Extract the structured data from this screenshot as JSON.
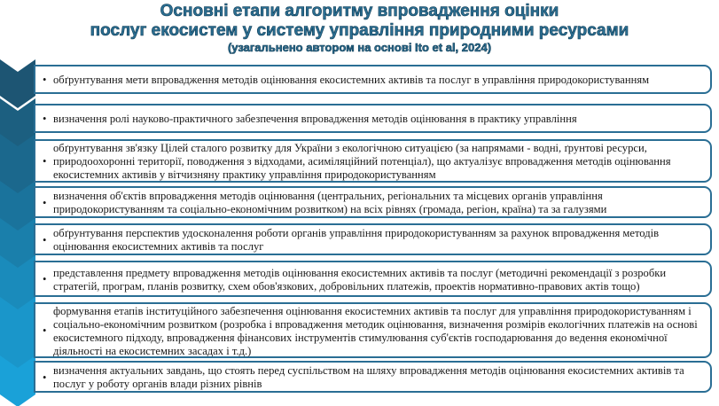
{
  "title": {
    "line1": "Основні етапи алгоритму впровадження оцінки",
    "line2": "послуг екосистем у систему управління природними ресурсами",
    "subtitle": "(узагальнено автором на основі Ito et al, 2024)"
  },
  "colors": {
    "chevrons": [
      "#1d5573",
      "#1c5f80",
      "#1b688d",
      "#1a739c",
      "#1a7fab",
      "#1a8bbb",
      "#1a96ca",
      "#1aa1d8"
    ],
    "border": "#2a6e94",
    "title": "#2b6f93"
  },
  "steps": [
    {
      "text": "обґрунтування мети впровадження методів оцінювання екосистемних активів та послуг в управління природокористуванням"
    },
    {
      "text": "визначення ролі науково-практичного забезпечення впровадження методів оцінювання в практику управління"
    },
    {
      "text": "обґрунтування зв'язку Цілей сталого розвитку для України з екологічною ситуацією (за напрямами - водні, ґрунтові ресурси, природоохоронні території, поводження з відходами, асиміляційний потенціал), що актуалізує впровадження методів оцінювання екосистемних активів у вітчизняну практику управління природокористуванням"
    },
    {
      "text": "визначення об'єктів впровадження методів оцінювання (центральних, регіональних та місцевих органів управління природокористуванням та соціально-економічним розвитком) на всіх рівнях (громада, регіон, країна) та за галузями"
    },
    {
      "text": "обґрунтування перспектив удосконалення роботи органів управління природокористуванням за рахунок впровадження методів оцінювання екосистемних активів та послуг"
    },
    {
      "text": "представлення предмету впровадження методів оцінювання екосистемних активів та послуг (методичні рекомендації з розробки стратегій, програм, планів розвитку, схем обов'язкових, добровільних платежів, проектів нормативно-правових актів тощо)"
    },
    {
      "text": "формування етапів інституційного забезпечення оцінювання екосистемних активів та послуг для управління природокористуванням і соціально-економічним розвитком (розробка і впровадження методик оцінювання, визначення розмірів екологічних платежів на основі екосистемного підходу, впровадження фінансових інструментів стимулювання суб'єктів господарювання до ведення економічної діяльності на екосистемних засадах і т.д.)"
    },
    {
      "text": "визначення актуальних завдань, що стоять перед суспільством на шляху впровадження методів оцінювання екосистемних активів та послуг у роботу органів влади різних рівнів"
    }
  ],
  "bullet": "•"
}
